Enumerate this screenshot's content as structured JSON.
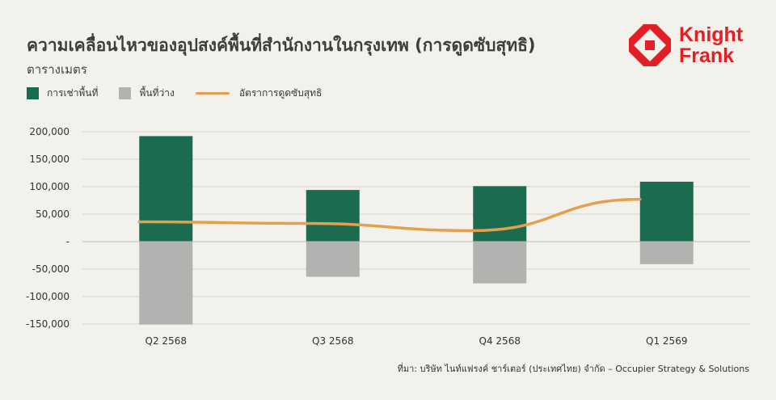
{
  "header": {
    "title": "ความเคลื่อนไหวของอุปสงค์พื้นที่สำนักงานในกรุงเทพ (การดูดซับสุทธิ)",
    "subtitle": "ตารางเมตร"
  },
  "logo": {
    "line1": "Knight",
    "line2": "Frank",
    "colors": {
      "brand": "#e31e24",
      "text": "#e31e24"
    }
  },
  "legend": {
    "items": [
      {
        "label": "การเช่าพื้นที่",
        "color": "#1a6b4f",
        "kind": "box"
      },
      {
        "label": "พื้นที่ว่าง",
        "color": "#b2b2b0",
        "kind": "box"
      },
      {
        "label": "อัตราการดูดซับสุทธิ",
        "color": "#e3a04e",
        "kind": "line"
      }
    ]
  },
  "chart_data": {
    "type": "bar",
    "categories": [
      "Q2 2568",
      "Q3 2568",
      "Q4 2568",
      "Q1 2569"
    ],
    "series": [
      {
        "name": "การเช่าพื้นที่",
        "type": "bar",
        "color": "#1a6b4f",
        "values": [
          192000,
          94000,
          101000,
          109000
        ]
      },
      {
        "name": "พื้นที่ว่าง",
        "type": "bar",
        "color": "#b2b2b0",
        "values": [
          -151000,
          -64000,
          -76000,
          -41000
        ]
      },
      {
        "name": "อัตราการดูดซับสุทธิ",
        "type": "line",
        "color": "#e3a04e",
        "values": [
          36000,
          33000,
          20000,
          77000
        ]
      }
    ],
    "y_ticks": [
      "200,000",
      "150,000",
      "100,000",
      "50,000",
      "-",
      "-50,000",
      "-100,000",
      "-150,000"
    ],
    "ylim": [
      -150000,
      200000
    ],
    "grid": true,
    "legend_position": "top-left"
  },
  "footnote": "ที่มา: บริษัท ไนท์แฟรงค์ ชาร์เตอร์ (ประเทศไทย) จำกัด – Occupier Strategy & Solutions"
}
